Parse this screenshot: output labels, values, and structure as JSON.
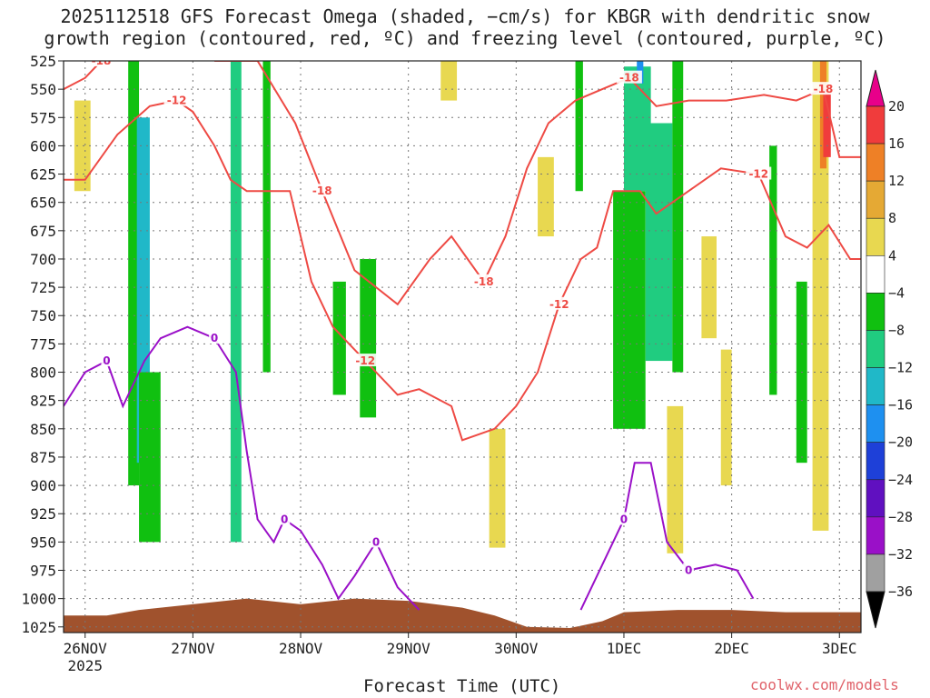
{
  "title_line1": "2025112518 GFS Forecast Omega (shaded, −cm/s) for KBGR with dendritic snow",
  "title_line2": "growth region (contoured, red, ºC) and freezing level (contoured, purple, ºC)",
  "credit": "coolwx.com/models",
  "chart_data": {
    "type": "heatmap",
    "title": "2025112518 GFS Forecast Omega (shaded, −cm/s) for KBGR with dendritic snow growth region (contoured, red, ºC) and freezing level (contoured, purple, ºC)",
    "xlabel": "Forecast Time (UTC)",
    "ylabel": "",
    "x_range_days": [
      25.8,
      33.2
    ],
    "x_ticks": [
      {
        "label": "26NOV",
        "day": 26
      },
      {
        "label": "27NOV",
        "day": 27
      },
      {
        "label": "28NOV",
        "day": 28
      },
      {
        "label": "29NOV",
        "day": 29
      },
      {
        "label": "30NOV",
        "day": 30
      },
      {
        "label": "1DEC",
        "day": 31
      },
      {
        "label": "2DEC",
        "day": 32
      },
      {
        "label": "3DEC",
        "day": 33
      }
    ],
    "x_year_label": "2025",
    "y_levels_hpa": [
      525,
      550,
      575,
      600,
      625,
      650,
      675,
      700,
      725,
      750,
      775,
      800,
      825,
      850,
      875,
      900,
      925,
      950,
      975,
      1000,
      1025
    ],
    "y_range_hpa": [
      525,
      1030
    ],
    "colorbar": {
      "labels": [
        "20",
        "16",
        "12",
        "8",
        "4",
        "−4",
        "−8",
        "−12",
        "−16",
        "−20",
        "−24",
        "−28",
        "−32",
        "−36"
      ],
      "colors": [
        "#e8008a",
        "#f03c3c",
        "#ee8026",
        "#e5a934",
        "#e8d850",
        "#ffffff",
        "#10c010",
        "#20cc80",
        "#20b8c8",
        "#1e90f0",
        "#1e40d8",
        "#6010c0",
        "#9a10c8",
        "#a0a0a0",
        "#000000"
      ]
    },
    "omega_shading": [
      {
        "day_start": 26.4,
        "day_end": 26.5,
        "p_top": 525,
        "p_bottom": 900,
        "value": -6
      },
      {
        "day_start": 26.48,
        "day_end": 26.6,
        "p_top": 575,
        "p_bottom": 880,
        "value": -14
      },
      {
        "day_start": 26.5,
        "day_end": 26.7,
        "p_top": 800,
        "p_bottom": 950,
        "value": -6
      },
      {
        "day_start": 27.35,
        "day_end": 27.45,
        "p_top": 525,
        "p_bottom": 950,
        "value": -9
      },
      {
        "day_start": 27.65,
        "day_end": 27.72,
        "p_top": 525,
        "p_bottom": 800,
        "value": -6
      },
      {
        "day_start": 28.3,
        "day_end": 28.42,
        "p_top": 720,
        "p_bottom": 820,
        "value": -6
      },
      {
        "day_start": 28.55,
        "day_end": 28.7,
        "p_top": 700,
        "p_bottom": 840,
        "value": -6
      },
      {
        "day_start": 30.55,
        "day_end": 30.62,
        "p_top": 525,
        "p_bottom": 640,
        "value": -6
      },
      {
        "day_start": 30.9,
        "day_end": 31.2,
        "p_top": 640,
        "p_bottom": 850,
        "value": -7
      },
      {
        "day_start": 31.0,
        "day_end": 31.25,
        "p_top": 530,
        "p_bottom": 640,
        "value": -11
      },
      {
        "day_start": 31.12,
        "day_end": 31.18,
        "p_top": 525,
        "p_bottom": 545,
        "value": -18
      },
      {
        "day_start": 31.2,
        "day_end": 31.45,
        "p_top": 580,
        "p_bottom": 790,
        "value": -12
      },
      {
        "day_start": 31.45,
        "day_end": 31.55,
        "p_top": 525,
        "p_bottom": 800,
        "value": -6
      },
      {
        "day_start": 32.35,
        "day_end": 32.42,
        "p_top": 600,
        "p_bottom": 820,
        "value": -6
      },
      {
        "day_start": 32.6,
        "day_end": 32.7,
        "p_top": 720,
        "p_bottom": 880,
        "value": -6
      },
      {
        "day_start": 32.75,
        "day_end": 32.9,
        "p_top": 525,
        "p_bottom": 940,
        "value": 6
      },
      {
        "day_start": 32.82,
        "day_end": 32.88,
        "p_top": 525,
        "p_bottom": 620,
        "value": 14
      },
      {
        "day_start": 32.85,
        "day_end": 32.92,
        "p_top": 550,
        "p_bottom": 610,
        "value": 18
      },
      {
        "day_start": 25.9,
        "day_end": 26.05,
        "p_top": 560,
        "p_bottom": 640,
        "value": 5
      },
      {
        "day_start": 29.3,
        "day_end": 29.45,
        "p_top": 525,
        "p_bottom": 560,
        "value": 5
      },
      {
        "day_start": 29.75,
        "day_end": 29.9,
        "p_top": 850,
        "p_bottom": 955,
        "value": 5
      },
      {
        "day_start": 30.2,
        "day_end": 30.35,
        "p_top": 610,
        "p_bottom": 680,
        "value": 5
      },
      {
        "day_start": 31.4,
        "day_end": 31.55,
        "p_top": 830,
        "p_bottom": 960,
        "value": 6
      },
      {
        "day_start": 31.72,
        "day_end": 31.86,
        "p_top": 680,
        "p_bottom": 770,
        "value": 5
      },
      {
        "day_start": 31.9,
        "day_end": 32.0,
        "p_top": 780,
        "p_bottom": 900,
        "value": 5
      }
    ],
    "dgz_contours": [
      {
        "label": "-18",
        "points": [
          [
            25.8,
            550
          ],
          [
            26.0,
            540
          ],
          [
            26.15,
            525
          ]
        ]
      },
      {
        "label": "-12",
        "points": [
          [
            25.8,
            630
          ],
          [
            26.0,
            630
          ],
          [
            26.3,
            590
          ],
          [
            26.6,
            565
          ],
          [
            26.85,
            560
          ],
          [
            27.0,
            570
          ],
          [
            27.2,
            600
          ],
          [
            27.35,
            630
          ],
          [
            27.5,
            640
          ],
          [
            27.9,
            640
          ],
          [
            28.1,
            720
          ],
          [
            28.3,
            760
          ],
          [
            28.6,
            790
          ],
          [
            28.9,
            820
          ],
          [
            29.1,
            815
          ],
          [
            29.4,
            830
          ],
          [
            29.5,
            860
          ],
          [
            29.8,
            850
          ],
          [
            30.0,
            830
          ],
          [
            30.2,
            800
          ],
          [
            30.4,
            740
          ],
          [
            30.6,
            700
          ],
          [
            30.75,
            690
          ],
          [
            30.9,
            640
          ],
          [
            31.15,
            640
          ],
          [
            31.3,
            660
          ],
          [
            31.6,
            640
          ],
          [
            31.9,
            620
          ],
          [
            32.25,
            625
          ],
          [
            32.5,
            680
          ],
          [
            32.7,
            690
          ],
          [
            32.9,
            670
          ],
          [
            33.1,
            700
          ],
          [
            33.2,
            700
          ]
        ]
      },
      {
        "label": "-18",
        "points": [
          [
            27.2,
            525
          ],
          [
            27.6,
            525
          ],
          [
            27.95,
            580
          ],
          [
            28.2,
            640
          ],
          [
            28.5,
            710
          ],
          [
            28.9,
            740
          ],
          [
            29.2,
            700
          ],
          [
            29.4,
            680
          ],
          [
            29.55,
            700
          ],
          [
            29.7,
            720
          ],
          [
            29.9,
            680
          ],
          [
            30.1,
            620
          ],
          [
            30.3,
            580
          ],
          [
            30.55,
            560
          ],
          [
            30.8,
            550
          ],
          [
            31.05,
            540
          ],
          [
            31.3,
            565
          ],
          [
            31.6,
            560
          ],
          [
            31.95,
            560
          ],
          [
            32.3,
            555
          ],
          [
            32.6,
            560
          ],
          [
            32.85,
            550
          ],
          [
            33.0,
            610
          ],
          [
            33.2,
            610
          ]
        ]
      }
    ],
    "freezing_level_contours": [
      {
        "label": "0",
        "points": [
          [
            25.8,
            830
          ],
          [
            26.0,
            800
          ],
          [
            26.2,
            790
          ],
          [
            26.35,
            830
          ],
          [
            26.55,
            790
          ],
          [
            26.7,
            770
          ],
          [
            26.95,
            760
          ],
          [
            27.2,
            770
          ],
          [
            27.4,
            800
          ],
          [
            27.5,
            870
          ],
          [
            27.6,
            930
          ],
          [
            27.75,
            950
          ],
          [
            27.85,
            930
          ],
          [
            28.0,
            940
          ],
          [
            28.2,
            970
          ],
          [
            28.35,
            1000
          ],
          [
            28.5,
            980
          ],
          [
            28.7,
            950
          ],
          [
            28.9,
            990
          ],
          [
            29.1,
            1010
          ]
        ]
      },
      {
        "label": "0",
        "points": [
          [
            30.6,
            1010
          ],
          [
            30.8,
            970
          ],
          [
            31.0,
            930
          ],
          [
            31.1,
            880
          ],
          [
            31.25,
            880
          ],
          [
            31.4,
            950
          ],
          [
            31.6,
            975
          ],
          [
            31.85,
            970
          ],
          [
            32.05,
            975
          ],
          [
            32.2,
            1000
          ]
        ]
      }
    ]
  }
}
